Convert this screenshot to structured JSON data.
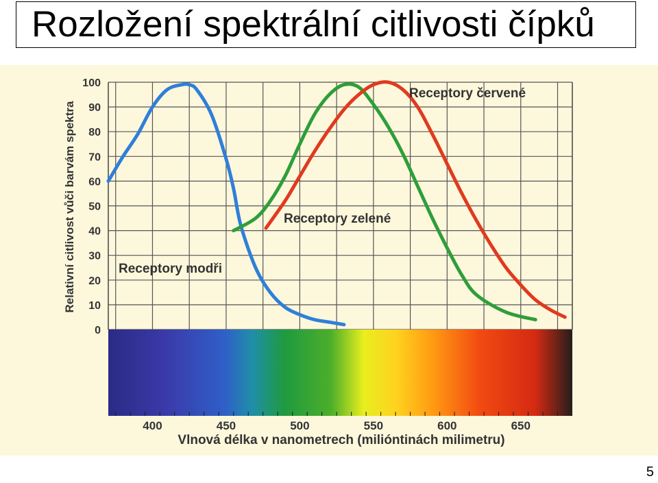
{
  "slide": {
    "title": "Rozložení spektrální citlivosti čípků",
    "page_number": "5"
  },
  "chart_data": {
    "type": "line",
    "xlabel": "Vlnová délka v nanometrech (milióntinách milimetru)",
    "ylabel": "Relativní citlivost vůči barvám spektra",
    "xlim": [
      370,
      685
    ],
    "ylim": [
      0,
      100
    ],
    "x_ticks": [
      400,
      450,
      500,
      550,
      600,
      650
    ],
    "y_ticks": [
      0,
      10,
      20,
      30,
      40,
      50,
      60,
      70,
      80,
      90,
      100
    ],
    "grid": true,
    "series": [
      {
        "name": "Receptory modři",
        "color": "#2f7fd9",
        "x": [
          370,
          380,
          390,
          400,
          410,
          420,
          425,
          430,
          440,
          450,
          455,
          460,
          470,
          480,
          490,
          500,
          510,
          520,
          530
        ],
        "y": [
          60,
          70,
          79,
          90,
          97,
          99,
          99,
          97,
          87,
          69,
          57,
          42,
          25,
          15,
          9,
          6,
          4,
          3,
          2
        ]
      },
      {
        "name": "Receptory zelené",
        "color": "#2e9e3a",
        "x": [
          455,
          470,
          480,
          490,
          500,
          510,
          520,
          530,
          540,
          550,
          560,
          570,
          580,
          590,
          600,
          610,
          620,
          640,
          660
        ],
        "y": [
          40,
          45,
          52,
          62,
          75,
          87,
          95,
          99,
          98,
          91,
          82,
          71,
          58,
          45,
          33,
          22,
          14,
          7,
          4
        ]
      },
      {
        "name": "Receptory červené",
        "color": "#e03a1f",
        "x": [
          477,
          490,
          500,
          510,
          520,
          530,
          540,
          550,
          560,
          570,
          580,
          590,
          600,
          610,
          620,
          630,
          640,
          650,
          660,
          670,
          680
        ],
        "y": [
          41,
          52,
          62,
          72,
          81,
          89,
          95,
          99,
          100,
          97,
          90,
          79,
          67,
          55,
          44,
          34,
          25,
          18,
          12,
          8,
          5
        ]
      }
    ]
  }
}
